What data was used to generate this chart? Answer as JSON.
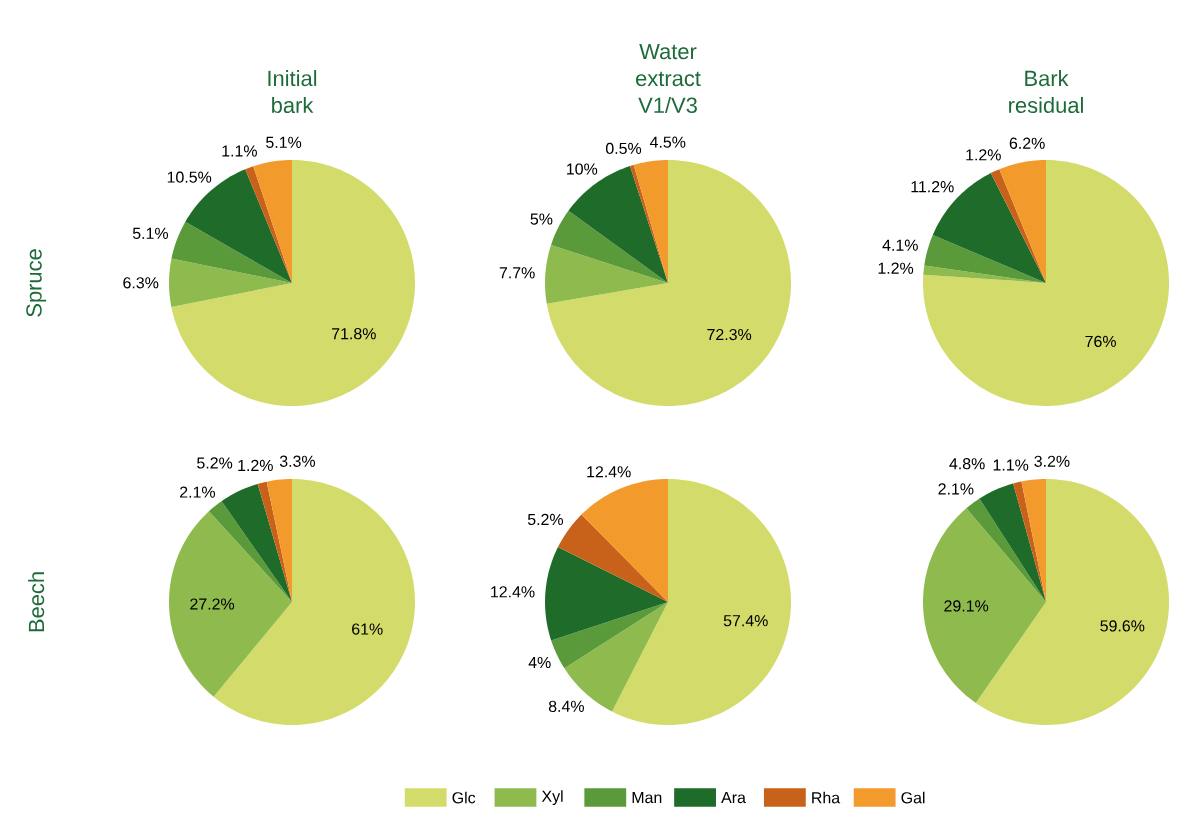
{
  "chart_data": [
    {
      "type": "pie",
      "title": "Initial bark",
      "ylabel": "Spruce",
      "categories": [
        null,
        null,
        null,
        null,
        null,
        null
      ],
      "values": [
        71.8,
        6.3,
        5.1,
        10.5,
        1.1,
        5.1
      ],
      "value_labels": [
        "71.8%",
        "6.3%",
        "5.1%",
        "10.5%",
        "1.1%",
        "5.1%"
      ],
      "colors": [
        "#d3dc6a",
        "#8fbb4e",
        "#5a9a3a",
        "#1f6b2a",
        "#c8611a",
        "#f39a2c"
      ]
    },
    {
      "type": "pie",
      "title": "Water extract V1/V3",
      "categories": [
        null,
        null,
        null,
        null,
        null,
        null
      ],
      "values": [
        72.3,
        7.7,
        5,
        10,
        0.5,
        4.5
      ],
      "value_labels": [
        "72.3%",
        "7.7%",
        "5%",
        "10%",
        "0.5%",
        "4.5%"
      ],
      "colors": [
        "#d3dc6a",
        "#8fbb4e",
        "#5a9a3a",
        "#1f6b2a",
        "#c8611a",
        "#f39a2c"
      ]
    },
    {
      "type": "pie",
      "title": "Bark residual",
      "categories": [
        null,
        null,
        null,
        null,
        null,
        null
      ],
      "values": [
        76,
        1.2,
        4.1,
        11.2,
        1.2,
        6.2
      ],
      "value_labels": [
        "76%",
        "1.2%",
        "4.1%",
        "11.2%",
        "1.2%",
        "6.2%"
      ],
      "colors": [
        "#d3dc6a",
        "#8fbb4e",
        "#5a9a3a",
        "#1f6b2a",
        "#c8611a",
        "#f39a2c"
      ]
    },
    {
      "type": "pie",
      "ylabel": "Beech",
      "categories": [
        null,
        null,
        null,
        null,
        null,
        null
      ],
      "values": [
        61,
        27.2,
        2.1,
        5.2,
        1.2,
        3.3
      ],
      "value_labels": [
        "61%",
        "27.2%",
        "2.1%",
        "5.2%",
        "1.2%",
        "3.3%"
      ],
      "colors": [
        "#d3dc6a",
        "#8fbb4e",
        "#5a9a3a",
        "#1f6b2a",
        "#c8611a",
        "#f39a2c"
      ]
    },
    {
      "type": "pie",
      "legend": "bottom",
      "categories": [
        "Glc",
        "Xyl",
        "Man",
        "Ara",
        "Rha",
        "Gal"
      ],
      "values": [
        57.4,
        8.4,
        4,
        12.4,
        5.2,
        12.4
      ],
      "value_labels": [
        "57.4%",
        "8.4%",
        "4%",
        "12.4%",
        "5.2%",
        "12.4%"
      ],
      "colors": [
        "#d3dc6a",
        "#8fbb4e",
        "#5a9a3a",
        "#1f6b2a",
        "#c8611a",
        "#f39a2c"
      ]
    },
    {
      "type": "pie",
      "categories": [
        null,
        null,
        null,
        null,
        null,
        null
      ],
      "values": [
        59.6,
        29.1,
        2.1,
        4.8,
        1.1,
        3.2
      ],
      "value_labels": [
        "59.6%",
        "29.1%",
        "2.1%",
        "4.8%",
        "1.1%",
        "3.2%"
      ],
      "colors": [
        "#d3dc6a",
        "#8fbb4e",
        "#5a9a3a",
        "#1f6b2a",
        "#c8611a",
        "#f39a2c"
      ]
    }
  ]
}
